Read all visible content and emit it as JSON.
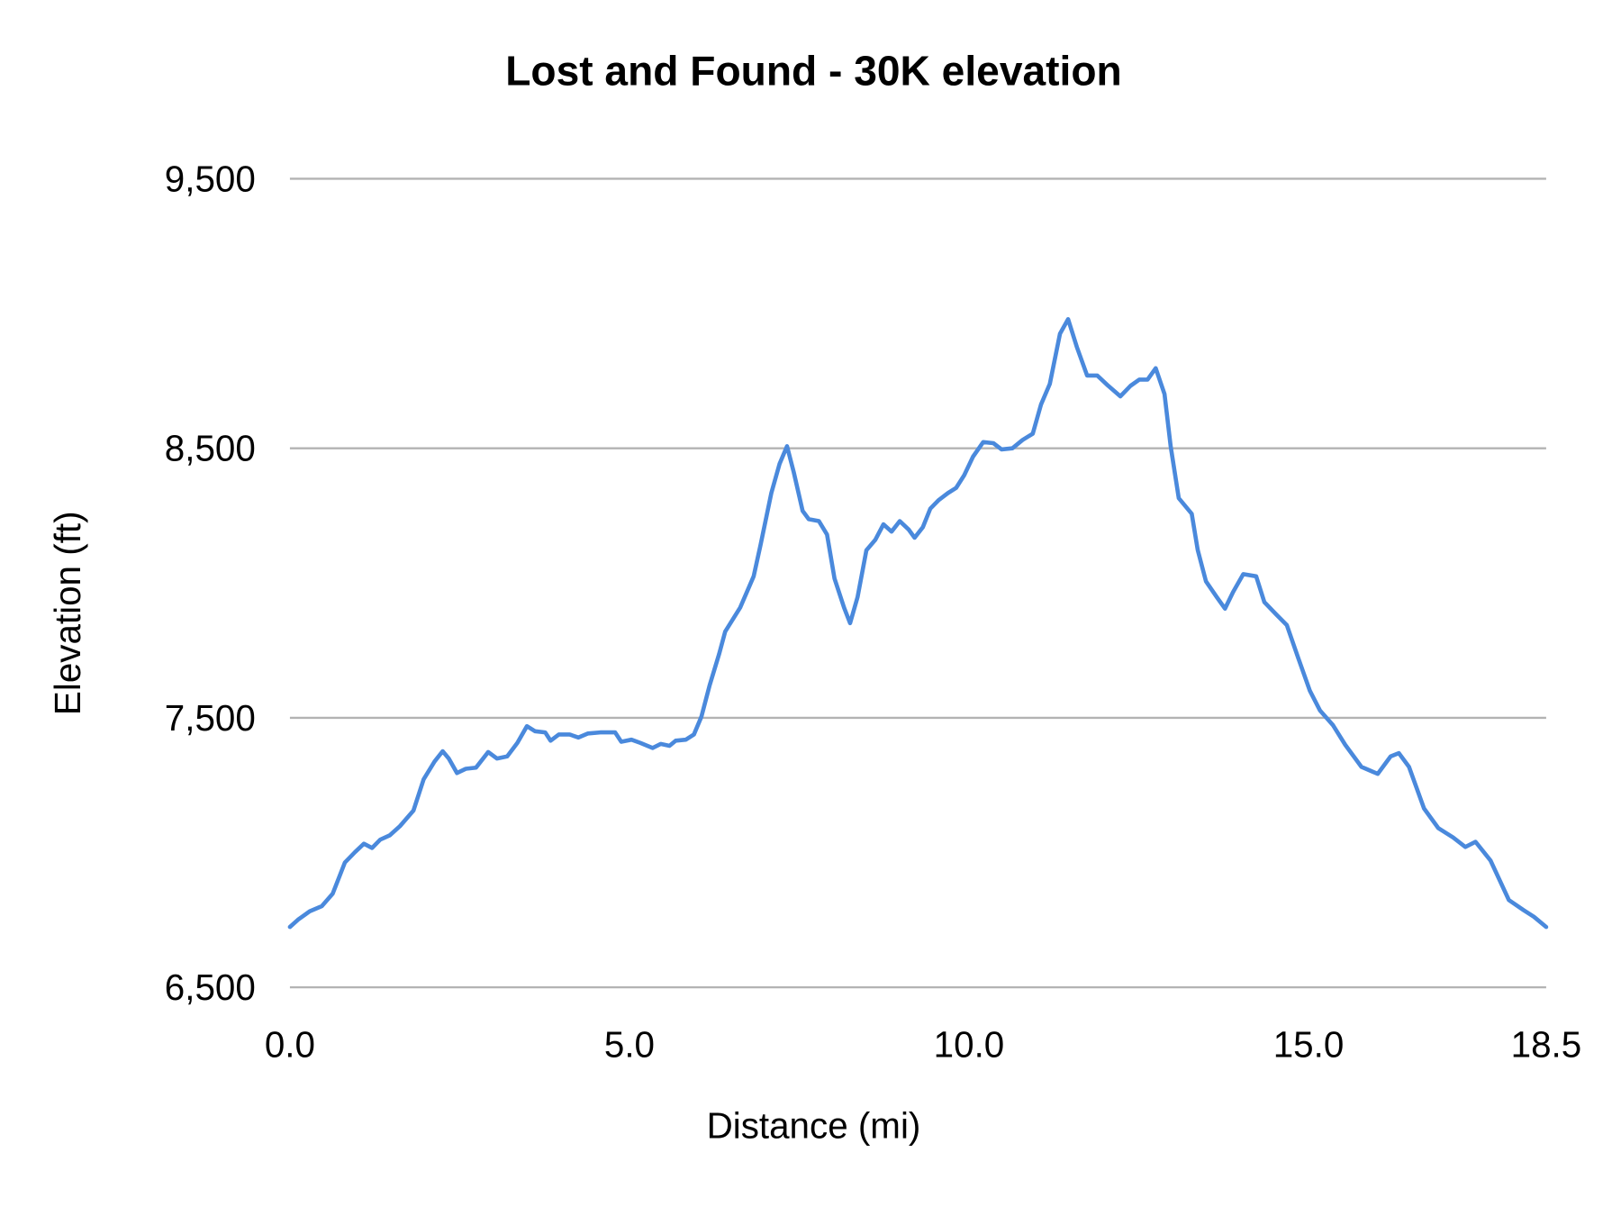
{
  "chart_data": {
    "type": "line",
    "title": "Lost and Found - 30K elevation",
    "xlabel": "Distance (mi)",
    "ylabel": "Elevation (ft)",
    "xlim": [
      0,
      18.5
    ],
    "ylim": [
      6500,
      9500
    ],
    "x_ticks": [
      "0.0",
      "5.0",
      "10.0",
      "15.0",
      "18.5"
    ],
    "x_tick_values": [
      0,
      5,
      10,
      15,
      18.5
    ],
    "y_ticks": [
      "6,500",
      "7,500",
      "8,500",
      "9,500"
    ],
    "y_tick_values": [
      6500,
      7500,
      8500,
      9500
    ],
    "grid": "horizontal",
    "legend": "none",
    "color": "#4a89dc",
    "series": [
      {
        "x": [
          0,
          0.12,
          0.29,
          0.47,
          0.63,
          0.81,
          0.96,
          1.09,
          1.21,
          1.33,
          1.47,
          1.62,
          1.82,
          1.97,
          2.13,
          2.25,
          2.34,
          2.46,
          2.59,
          2.74,
          2.92,
          3.05,
          3.2,
          3.35,
          3.49,
          3.61,
          3.76,
          3.84,
          3.96,
          4.12,
          4.25,
          4.39,
          4.57,
          4.79,
          4.88,
          5.03,
          5.16,
          5.34,
          5.46,
          5.59,
          5.68,
          5.83,
          5.95,
          6.06,
          6.18,
          6.32,
          6.41,
          6.63,
          6.83,
          6.93,
          7.09,
          7.21,
          7.32,
          7.42,
          7.55,
          7.64,
          7.79,
          7.91,
          8.02,
          8.16,
          8.25,
          8.36,
          8.49,
          8.62,
          8.74,
          8.86,
          8.98,
          9.11,
          9.2,
          9.32,
          9.43,
          9.55,
          9.69,
          9.81,
          9.93,
          10.06,
          10.21,
          10.36,
          10.48,
          10.64,
          10.79,
          10.94,
          11.06,
          11.19,
          11.34,
          11.46,
          11.59,
          11.74,
          11.89,
          12.05,
          12.23,
          12.38,
          12.51,
          12.63,
          12.75,
          12.88,
          12.97,
          13.09,
          13.28,
          13.37,
          13.49,
          13.65,
          13.77,
          13.89,
          14.04,
          14.23,
          14.35,
          14.53,
          14.68,
          14.84,
          15.02,
          15.17,
          15.36,
          15.54,
          15.78,
          16.02,
          16.21,
          16.33,
          16.48,
          16.7,
          16.91,
          17.13,
          17.31,
          17.46,
          17.68,
          17.95,
          18.17,
          18.32,
          18.5
        ],
        "y": [
          6724,
          6751,
          6782,
          6801,
          6848,
          6963,
          7002,
          7033,
          7017,
          7048,
          7064,
          7098,
          7156,
          7272,
          7338,
          7376,
          7349,
          7295,
          7311,
          7315,
          7373,
          7349,
          7357,
          7407,
          7469,
          7450,
          7446,
          7415,
          7438,
          7438,
          7427,
          7442,
          7446,
          7446,
          7411,
          7419,
          7407,
          7388,
          7403,
          7396,
          7415,
          7419,
          7438,
          7504,
          7620,
          7736,
          7820,
          7909,
          8025,
          8141,
          8334,
          8442,
          8508,
          8411,
          8268,
          8237,
          8230,
          8180,
          8017,
          7909,
          7851,
          7948,
          8122,
          8160,
          8218,
          8191,
          8230,
          8199,
          8168,
          8207,
          8276,
          8307,
          8334,
          8353,
          8400,
          8469,
          8523,
          8519,
          8496,
          8500,
          8531,
          8554,
          8662,
          8739,
          8925,
          8979,
          8875,
          8770,
          8770,
          8732,
          8693,
          8732,
          8755,
          8755,
          8797,
          8701,
          8508,
          8315,
          8257,
          8122,
          8006,
          7948,
          7905,
          7967,
          8033,
          8025,
          7929,
          7882,
          7844,
          7728,
          7600,
          7527,
          7473,
          7400,
          7318,
          7292,
          7357,
          7369,
          7318,
          7164,
          7091,
          7056,
          7021,
          7040,
          6971,
          6824,
          6786,
          6762,
          6724
        ]
      }
    ]
  }
}
